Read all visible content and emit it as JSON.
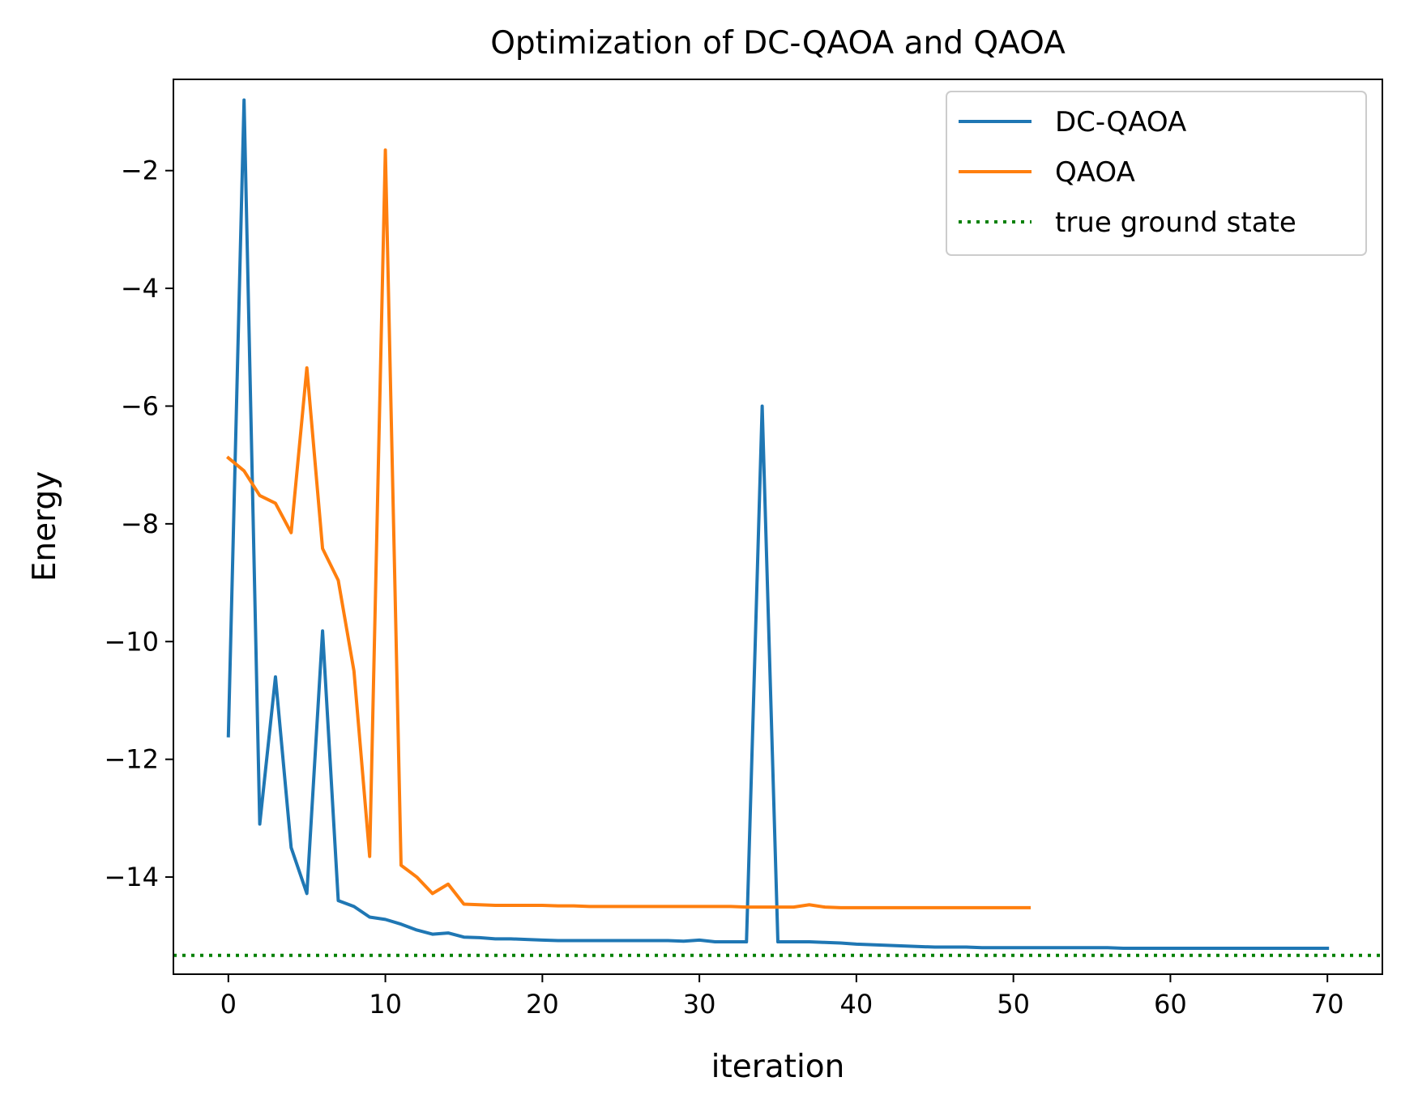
{
  "chart_data": {
    "type": "line",
    "title": "Optimization of DC-QAOA and QAOA",
    "xlabel": "iteration",
    "ylabel": "Energy",
    "xlim": [
      -3.5,
      73.5
    ],
    "ylim": [
      -15.65,
      -0.45
    ],
    "xticks": [
      0,
      10,
      20,
      30,
      40,
      50,
      60,
      70
    ],
    "yticks": [
      -14,
      -12,
      -10,
      -8,
      -6,
      -4,
      -2
    ],
    "legend_position": "upper right",
    "grid": false,
    "series": [
      {
        "name": "DC-QAOA",
        "color": "#1f77b4",
        "style": "solid",
        "x": [
          0,
          1,
          2,
          3,
          4,
          5,
          6,
          7,
          8,
          9,
          10,
          11,
          12,
          13,
          14,
          15,
          16,
          17,
          18,
          19,
          20,
          21,
          22,
          23,
          24,
          25,
          26,
          27,
          28,
          29,
          30,
          31,
          32,
          33,
          34,
          35,
          36,
          37,
          38,
          39,
          40,
          41,
          42,
          43,
          44,
          45,
          46,
          47,
          48,
          49,
          50,
          51,
          52,
          53,
          54,
          55,
          56,
          57,
          58,
          59,
          60,
          61,
          62,
          63,
          64,
          65,
          66,
          67,
          68,
          69,
          70
        ],
        "y": [
          -11.6,
          -0.8,
          -13.1,
          -10.6,
          -13.5,
          -14.28,
          -9.82,
          -14.4,
          -14.5,
          -14.68,
          -14.72,
          -14.8,
          -14.9,
          -14.97,
          -14.95,
          -15.02,
          -15.03,
          -15.05,
          -15.05,
          -15.06,
          -15.07,
          -15.08,
          -15.08,
          -15.08,
          -15.08,
          -15.08,
          -15.08,
          -15.08,
          -15.08,
          -15.09,
          -15.07,
          -15.1,
          -15.1,
          -15.1,
          -6.0,
          -15.1,
          -15.1,
          -15.1,
          -15.11,
          -15.12,
          -15.14,
          -15.15,
          -15.16,
          -15.17,
          -15.18,
          -15.19,
          -15.19,
          -15.19,
          -15.2,
          -15.2,
          -15.2,
          -15.2,
          -15.2,
          -15.2,
          -15.2,
          -15.2,
          -15.2,
          -15.21,
          -15.21,
          -15.21,
          -15.21,
          -15.21,
          -15.21,
          -15.21,
          -15.21,
          -15.21,
          -15.21,
          -15.21,
          -15.21,
          -15.21,
          -15.21
        ]
      },
      {
        "name": "QAOA",
        "color": "#ff7f0e",
        "style": "solid",
        "x": [
          0,
          1,
          2,
          3,
          4,
          5,
          6,
          7,
          8,
          9,
          10,
          11,
          12,
          13,
          14,
          15,
          16,
          17,
          18,
          19,
          20,
          21,
          22,
          23,
          24,
          25,
          26,
          27,
          28,
          29,
          30,
          31,
          32,
          33,
          34,
          35,
          36,
          37,
          38,
          39,
          40,
          41,
          42,
          43,
          44,
          45,
          46,
          47,
          48,
          49,
          50,
          51
        ],
        "y": [
          -6.88,
          -7.1,
          -7.52,
          -7.65,
          -8.15,
          -5.35,
          -8.42,
          -8.96,
          -10.5,
          -13.65,
          -1.65,
          -13.8,
          -14.0,
          -14.28,
          -14.12,
          -14.46,
          -14.47,
          -14.48,
          -14.48,
          -14.48,
          -14.48,
          -14.49,
          -14.49,
          -14.5,
          -14.5,
          -14.5,
          -14.5,
          -14.5,
          -14.5,
          -14.5,
          -14.5,
          -14.5,
          -14.5,
          -14.51,
          -14.51,
          -14.51,
          -14.51,
          -14.47,
          -14.51,
          -14.52,
          -14.52,
          -14.52,
          -14.52,
          -14.52,
          -14.52,
          -14.52,
          -14.52,
          -14.52,
          -14.52,
          -14.52,
          -14.52,
          -14.52
        ]
      },
      {
        "name": "true ground state",
        "color": "#008000",
        "style": "dotted",
        "y_constant": -15.33
      }
    ]
  }
}
